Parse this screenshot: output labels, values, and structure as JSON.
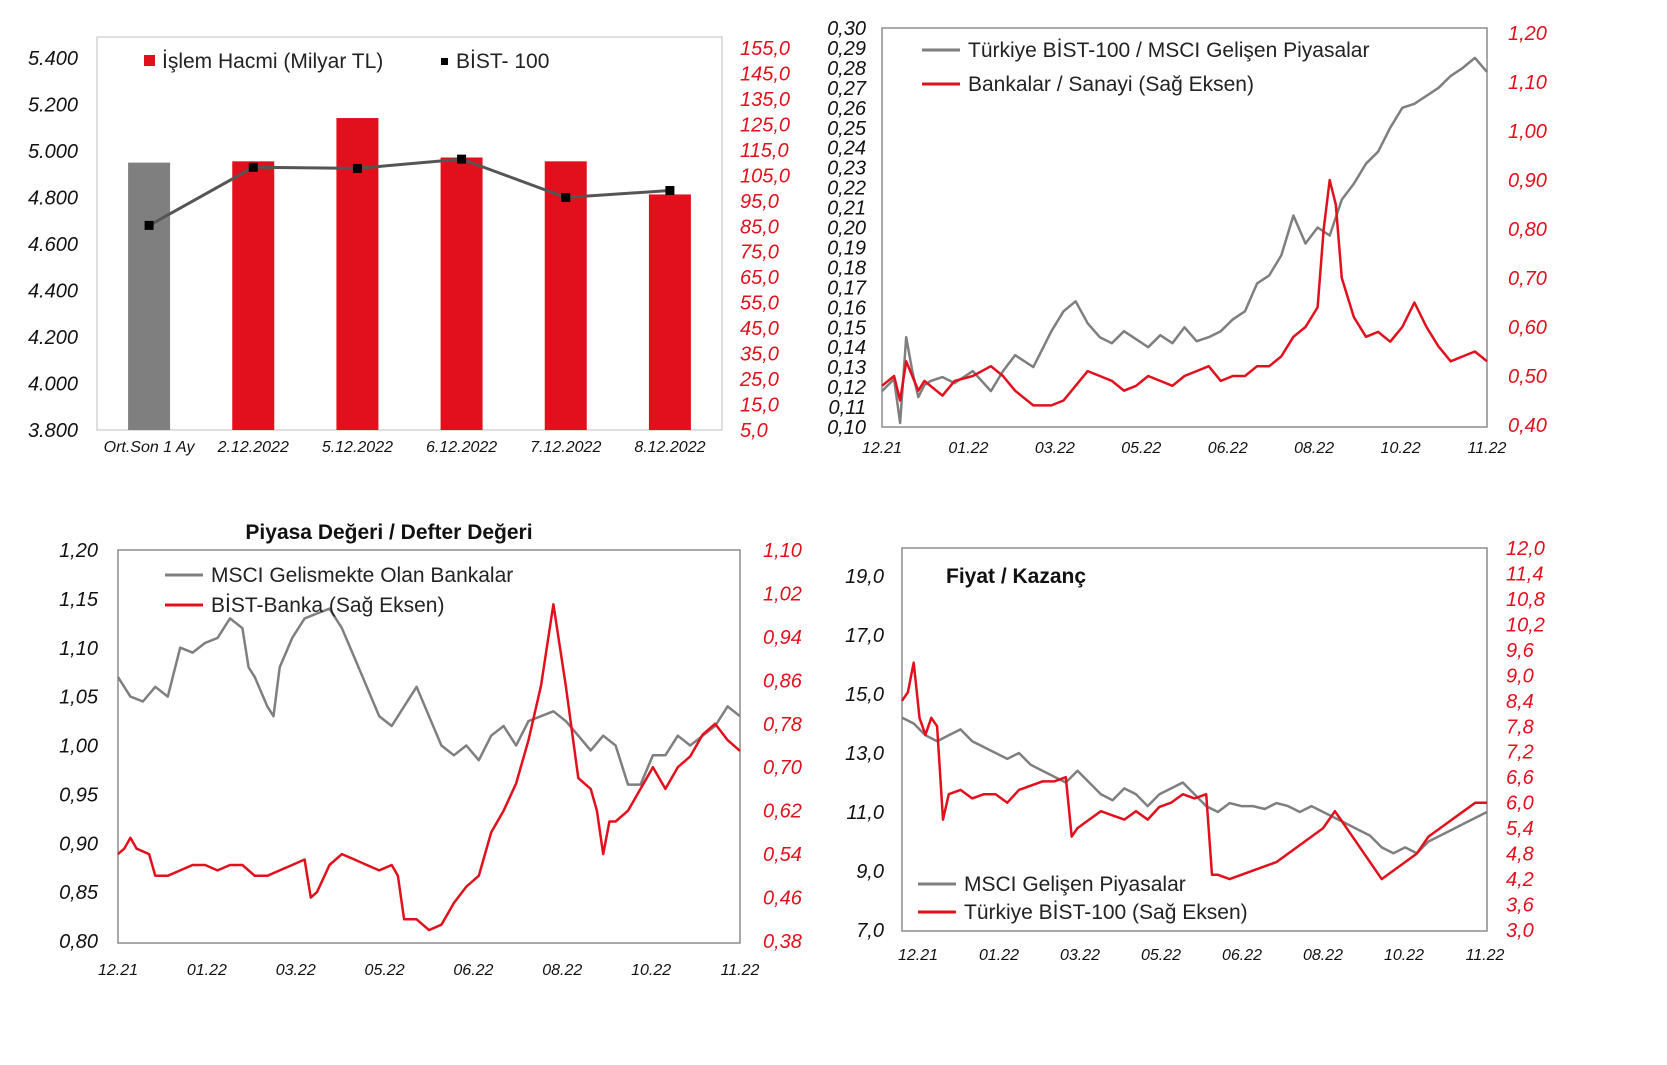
{
  "colors": {
    "red": "#e2101c",
    "gray": "#7f7f7f",
    "dark": "#555555",
    "black": "#000000"
  },
  "chart_data": [
    {
      "type": "bar",
      "categories": [
        "Ort.Son 1 Ay",
        "2.12.2022",
        "5.12.2022",
        "6.12.2022",
        "7.12.2022",
        "8.12.2022"
      ],
      "series": [
        {
          "name": "İşlem Hacmi (Milyar TL)",
          "axis": "right",
          "values": [
            110.0,
            110.5,
            127.5,
            112.0,
            110.5,
            97.5
          ]
        },
        {
          "name": "BİST- 100",
          "axis": "left",
          "type": "line",
          "values": [
            4680,
            4930,
            4925,
            4965,
            4800,
            4830
          ]
        }
      ],
      "left_ticks": [
        "5.400",
        "5.200",
        "5.000",
        "4.800",
        "4.600",
        "4.400",
        "4.200",
        "4.000",
        "3.800"
      ],
      "right_ticks": [
        "155,0",
        "145,0",
        "135,0",
        "125,0",
        "115,0",
        "105,0",
        "95,0",
        "85,0",
        "75,0",
        "65,0",
        "55,0",
        "45,0",
        "35,0",
        "25,0",
        "15,0",
        "5,0"
      ],
      "ylim_left": [
        3800,
        5500
      ],
      "ylim_right": [
        5,
        160
      ]
    },
    {
      "type": "line",
      "x_ticks": [
        "12.21",
        "01.22",
        "03.22",
        "05.22",
        "06.22",
        "08.22",
        "10.22",
        "11.22"
      ],
      "left_ticks": [
        "0,30",
        "0,29",
        "0,28",
        "0,27",
        "0,26",
        "0,25",
        "0,24",
        "0,23",
        "0,22",
        "0,21",
        "0,20",
        "0,19",
        "0,18",
        "0,17",
        "0,16",
        "0,15",
        "0,14",
        "0,13",
        "0,12",
        "0,11",
        "0,10"
      ],
      "right_ticks": [
        "1,20",
        "1,10",
        "1,00",
        "0,90",
        "0,80",
        "0,70",
        "0,60",
        "0,50",
        "0,40"
      ],
      "ylim_left": [
        0.1,
        0.3
      ],
      "ylim_right": [
        0.4,
        1.2
      ],
      "series": [
        {
          "name": "Türkiye BİST-100 / MSCI Gelişen Piyasalar",
          "axis": "left",
          "x": [
            0,
            2,
            3,
            4,
            5,
            6,
            7,
            8,
            10,
            12,
            15,
            18,
            20,
            22,
            25,
            28,
            30,
            32,
            34,
            36,
            38,
            40,
            42,
            44,
            46,
            48,
            50,
            52,
            54,
            56,
            58,
            60,
            62,
            64,
            66,
            68,
            70,
            72,
            74,
            76,
            78,
            80,
            82,
            84,
            86,
            88,
            90,
            92,
            94,
            96,
            98,
            100
          ],
          "y": [
            0.118,
            0.124,
            0.102,
            0.145,
            0.128,
            0.115,
            0.121,
            0.123,
            0.125,
            0.122,
            0.128,
            0.118,
            0.128,
            0.136,
            0.13,
            0.148,
            0.158,
            0.163,
            0.152,
            0.145,
            0.142,
            0.148,
            0.144,
            0.14,
            0.146,
            0.142,
            0.15,
            0.143,
            0.145,
            0.148,
            0.154,
            0.158,
            0.172,
            0.176,
            0.186,
            0.206,
            0.192,
            0.2,
            0.196,
            0.214,
            0.222,
            0.232,
            0.238,
            0.25,
            0.26,
            0.262,
            0.266,
            0.27,
            0.276,
            0.28,
            0.285,
            0.278
          ]
        },
        {
          "name": "Bankalar / Sanayi (Sağ Eksen)",
          "axis": "right",
          "x": [
            0,
            2,
            3,
            4,
            5,
            6,
            7,
            8,
            10,
            12,
            15,
            18,
            20,
            22,
            25,
            28,
            30,
            32,
            34,
            36,
            38,
            40,
            42,
            44,
            46,
            48,
            50,
            52,
            54,
            56,
            58,
            60,
            62,
            64,
            66,
            68,
            70,
            72,
            73,
            74,
            75,
            76,
            78,
            80,
            82,
            84,
            86,
            88,
            90,
            92,
            94,
            96,
            98,
            100
          ],
          "y": [
            0.48,
            0.5,
            0.45,
            0.53,
            0.5,
            0.47,
            0.49,
            0.48,
            0.46,
            0.49,
            0.5,
            0.52,
            0.5,
            0.47,
            0.44,
            0.44,
            0.45,
            0.48,
            0.51,
            0.5,
            0.49,
            0.47,
            0.48,
            0.5,
            0.49,
            0.48,
            0.5,
            0.51,
            0.52,
            0.49,
            0.5,
            0.5,
            0.52,
            0.52,
            0.54,
            0.58,
            0.6,
            0.64,
            0.8,
            0.9,
            0.85,
            0.7,
            0.62,
            0.58,
            0.59,
            0.57,
            0.6,
            0.65,
            0.6,
            0.56,
            0.53,
            0.54,
            0.55,
            0.53
          ]
        }
      ]
    },
    {
      "type": "line",
      "title": "Piyasa Değeri / Defter Değeri",
      "x_ticks": [
        "12.21",
        "01.22",
        "03.22",
        "05.22",
        "06.22",
        "08.22",
        "10.22",
        "11.22"
      ],
      "left_ticks": [
        "1,20",
        "1,15",
        "1,10",
        "1,05",
        "1,00",
        "0,95",
        "0,90",
        "0,85",
        "0,80"
      ],
      "right_ticks": [
        "1,10",
        "1,02",
        "0,94",
        "0,86",
        "0,78",
        "0,70",
        "0,62",
        "0,54",
        "0,46",
        "0,38"
      ],
      "ylim_left": [
        0.8,
        1.2
      ],
      "ylim_right": [
        0.38,
        1.1
      ],
      "series": [
        {
          "name": "MSCI Gelismekte Olan Bankalar",
          "axis": "left",
          "x": [
            0,
            2,
            4,
            6,
            8,
            10,
            12,
            14,
            16,
            18,
            20,
            21,
            22,
            24,
            25,
            26,
            28,
            30,
            32,
            34,
            36,
            38,
            40,
            42,
            44,
            46,
            48,
            50,
            52,
            54,
            56,
            58,
            60,
            62,
            64,
            66,
            68,
            70,
            72,
            74,
            76,
            78,
            80,
            82,
            84,
            86,
            88,
            90,
            92,
            94,
            96,
            98,
            100
          ],
          "y": [
            1.07,
            1.05,
            1.045,
            1.06,
            1.05,
            1.1,
            1.095,
            1.105,
            1.11,
            1.13,
            1.12,
            1.08,
            1.07,
            1.04,
            1.03,
            1.08,
            1.11,
            1.13,
            1.135,
            1.14,
            1.12,
            1.09,
            1.06,
            1.03,
            1.02,
            1.04,
            1.06,
            1.03,
            1.0,
            0.99,
            1.0,
            0.985,
            1.01,
            1.02,
            1.0,
            1.025,
            1.03,
            1.035,
            1.025,
            1.01,
            0.995,
            1.01,
            1.0,
            0.96,
            0.96,
            0.99,
            0.99,
            1.01,
            1.0,
            1.01,
            1.02,
            1.04,
            1.03
          ]
        },
        {
          "name": "BİST-Banka (Sağ Eksen)",
          "axis": "right",
          "x": [
            0,
            1,
            2,
            3,
            5,
            6,
            8,
            10,
            12,
            14,
            16,
            18,
            20,
            22,
            24,
            26,
            28,
            30,
            31,
            32,
            34,
            36,
            38,
            40,
            42,
            44,
            45,
            46,
            48,
            50,
            52,
            54,
            56,
            58,
            60,
            62,
            64,
            66,
            68,
            70,
            72,
            74,
            76,
            77,
            78,
            79,
            80,
            82,
            84,
            86,
            88,
            90,
            92,
            94,
            96,
            98,
            100
          ],
          "y": [
            0.54,
            0.55,
            0.57,
            0.55,
            0.54,
            0.5,
            0.5,
            0.51,
            0.52,
            0.52,
            0.51,
            0.52,
            0.52,
            0.5,
            0.5,
            0.51,
            0.52,
            0.53,
            0.46,
            0.47,
            0.52,
            0.54,
            0.53,
            0.52,
            0.51,
            0.52,
            0.5,
            0.42,
            0.42,
            0.4,
            0.41,
            0.45,
            0.48,
            0.5,
            0.58,
            0.62,
            0.67,
            0.75,
            0.85,
            1.0,
            0.85,
            0.68,
            0.66,
            0.62,
            0.54,
            0.6,
            0.6,
            0.62,
            0.66,
            0.7,
            0.66,
            0.7,
            0.72,
            0.76,
            0.78,
            0.75,
            0.73
          ]
        }
      ]
    },
    {
      "type": "line",
      "title": "Fiyat / Kazanç",
      "x_ticks": [
        "12.21",
        "01.22",
        "03.22",
        "05.22",
        "06.22",
        "08.22",
        "10.22",
        "11.22"
      ],
      "left_ticks": [
        "19,0",
        "17,0",
        "15,0",
        "13,0",
        "11,0",
        "9,0",
        "7,0"
      ],
      "right_ticks": [
        "12,0",
        "11,4",
        "10,8",
        "10,2",
        "9,6",
        "9,0",
        "8,4",
        "7,8",
        "7,2",
        "6,6",
        "6,0",
        "5,4",
        "4,8",
        "4,2",
        "3,6",
        "3,0"
      ],
      "ylim_left": [
        7.0,
        20.0
      ],
      "ylim_right": [
        3.0,
        12.0
      ],
      "series": [
        {
          "name": "MSCI Gelişen Piyasalar",
          "axis": "left",
          "x": [
            0,
            2,
            4,
            6,
            8,
            10,
            12,
            14,
            16,
            18,
            20,
            22,
            24,
            26,
            28,
            30,
            32,
            34,
            36,
            38,
            40,
            42,
            44,
            46,
            48,
            50,
            52,
            54,
            56,
            58,
            60,
            62,
            64,
            66,
            68,
            70,
            72,
            74,
            76,
            78,
            80,
            82,
            84,
            86,
            88,
            90,
            92,
            94,
            96,
            98,
            100
          ],
          "y": [
            14.2,
            14.0,
            13.6,
            13.4,
            13.6,
            13.8,
            13.4,
            13.2,
            13.0,
            12.8,
            13.0,
            12.6,
            12.4,
            12.2,
            12.0,
            12.4,
            12.0,
            11.6,
            11.4,
            11.8,
            11.6,
            11.2,
            11.6,
            11.8,
            12.0,
            11.6,
            11.2,
            11.0,
            11.3,
            11.2,
            11.2,
            11.1,
            11.3,
            11.2,
            11.0,
            11.2,
            11.0,
            10.8,
            10.6,
            10.4,
            10.2,
            9.8,
            9.6,
            9.8,
            9.6,
            10.0,
            10.2,
            10.4,
            10.6,
            10.8,
            11.0
          ]
        },
        {
          "name": "Türkiye BİST-100 (Sağ Eksen)",
          "axis": "right",
          "x": [
            0,
            1,
            2,
            3,
            4,
            5,
            6,
            7,
            8,
            10,
            12,
            14,
            16,
            18,
            20,
            22,
            24,
            26,
            28,
            29,
            30,
            32,
            34,
            36,
            38,
            40,
            42,
            44,
            46,
            48,
            50,
            52,
            53,
            54,
            56,
            58,
            60,
            62,
            64,
            66,
            68,
            70,
            72,
            74,
            75,
            76,
            78,
            80,
            82,
            84,
            86,
            88,
            90,
            92,
            94,
            96,
            98,
            100
          ],
          "y": [
            8.4,
            8.6,
            9.3,
            8.0,
            7.6,
            8.0,
            7.8,
            5.6,
            6.2,
            6.3,
            6.1,
            6.2,
            6.2,
            6.0,
            6.3,
            6.4,
            6.5,
            6.5,
            6.6,
            5.2,
            5.4,
            5.6,
            5.8,
            5.7,
            5.6,
            5.8,
            5.6,
            5.9,
            6.0,
            6.2,
            6.1,
            6.2,
            4.3,
            4.3,
            4.2,
            4.3,
            4.4,
            4.5,
            4.6,
            4.8,
            5.0,
            5.2,
            5.4,
            5.8,
            5.6,
            5.4,
            5.0,
            4.6,
            4.2,
            4.4,
            4.6,
            4.8,
            5.2,
            5.4,
            5.6,
            5.8,
            6.0,
            6.0
          ]
        }
      ]
    }
  ]
}
